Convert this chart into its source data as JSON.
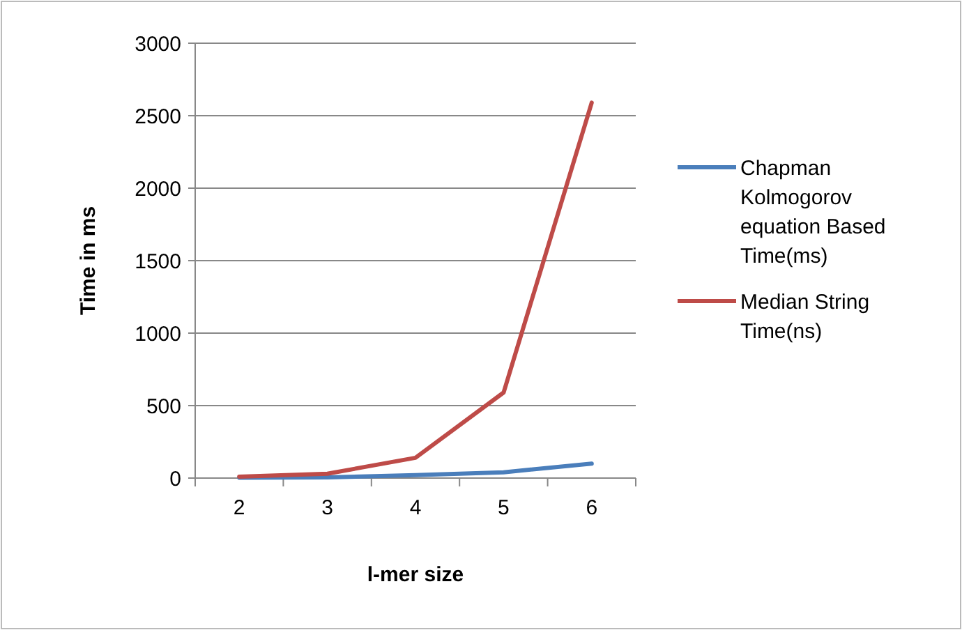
{
  "chart_data": {
    "type": "line",
    "xlabel": "l-mer size",
    "ylabel": "Time in ms",
    "categories": [
      "2",
      "3",
      "4",
      "5",
      "6"
    ],
    "series": [
      {
        "name": "Chapman Kolmogorov equation Based Time(ms)",
        "color": "#4a7ebb",
        "values": [
          2,
          5,
          20,
          40,
          100
        ]
      },
      {
        "name": "Median String Time(ns)",
        "color": "#be4b48",
        "values": [
          10,
          30,
          140,
          590,
          2590
        ]
      }
    ],
    "ylim": [
      0,
      3000
    ],
    "yticks": [
      0,
      500,
      1000,
      1500,
      2000,
      2500,
      3000
    ],
    "grid": "y",
    "legend": "right",
    "marker": "none",
    "line_style": "solid"
  }
}
